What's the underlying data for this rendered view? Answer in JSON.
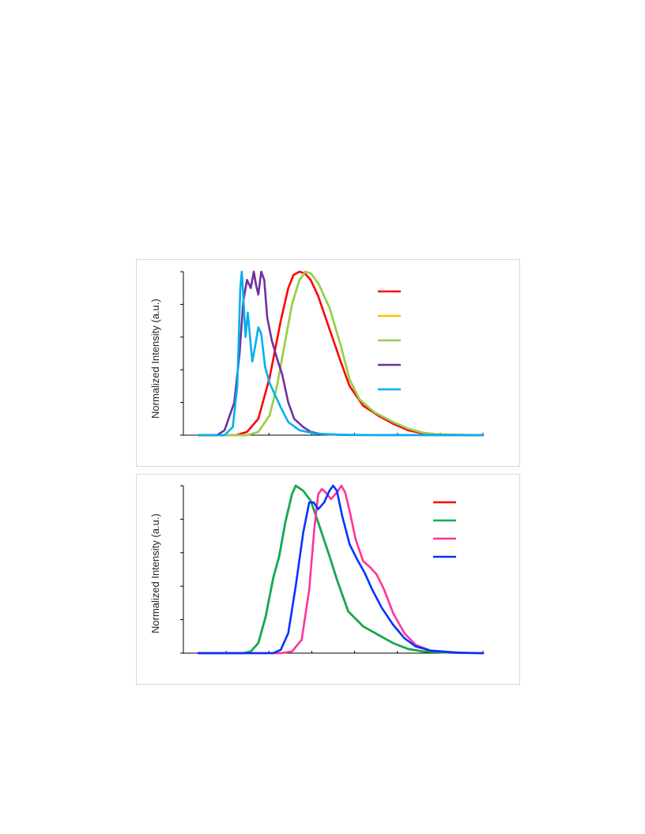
{
  "chart_data": [
    {
      "type": "line",
      "ylabel": "Normalized Intensity (a.u.)",
      "xlabel": "",
      "ylim": [
        0,
        1
      ],
      "yticks": 5,
      "xticks": 7,
      "legend_position": "right",
      "series": [
        {
          "color": "#ff0000",
          "points": [
            [
              20,
              0
            ],
            [
              70,
              0
            ],
            [
              85,
              0.02
            ],
            [
              100,
              0.1
            ],
            [
              115,
              0.35
            ],
            [
              130,
              0.7
            ],
            [
              140,
              0.9
            ],
            [
              147,
              0.98
            ],
            [
              155,
              1.0
            ],
            [
              162,
              0.99
            ],
            [
              170,
              0.95
            ],
            [
              180,
              0.85
            ],
            [
              195,
              0.65
            ],
            [
              210,
              0.45
            ],
            [
              222,
              0.3
            ],
            [
              240,
              0.18
            ],
            [
              260,
              0.12
            ],
            [
              280,
              0.07
            ],
            [
              300,
              0.03
            ],
            [
              320,
              0.01
            ],
            [
              340,
              0.003
            ],
            [
              380,
              0.001
            ],
            [
              400,
              0
            ]
          ]
        },
        {
          "color": "#ffc000",
          "points": [
            [
              20,
              0
            ],
            [
              85,
              0
            ],
            [
              100,
              0.02
            ],
            [
              115,
              0.12
            ],
            [
              125,
              0.3
            ],
            [
              135,
              0.55
            ],
            [
              145,
              0.8
            ],
            [
              155,
              0.95
            ],
            [
              163,
              1.0
            ],
            [
              170,
              0.99
            ],
            [
              180,
              0.93
            ],
            [
              195,
              0.78
            ],
            [
              210,
              0.55
            ],
            [
              222,
              0.34
            ],
            [
              235,
              0.22
            ],
            [
              255,
              0.14
            ],
            [
              280,
              0.08
            ],
            [
              300,
              0.04
            ],
            [
              320,
              0.015
            ],
            [
              340,
              0.005
            ],
            [
              380,
              0.001
            ],
            [
              400,
              0
            ]
          ]
        },
        {
          "color": "#92d050",
          "points": [
            [
              20,
              0
            ],
            [
              85,
              0
            ],
            [
              100,
              0.02
            ],
            [
              115,
              0.12
            ],
            [
              125,
              0.3
            ],
            [
              135,
              0.55
            ],
            [
              145,
              0.8
            ],
            [
              155,
              0.95
            ],
            [
              163,
              1.0
            ],
            [
              170,
              0.99
            ],
            [
              180,
              0.93
            ],
            [
              195,
              0.78
            ],
            [
              210,
              0.55
            ],
            [
              222,
              0.34
            ],
            [
              235,
              0.22
            ],
            [
              255,
              0.14
            ],
            [
              280,
              0.08
            ],
            [
              300,
              0.04
            ],
            [
              320,
              0.015
            ],
            [
              340,
              0.005
            ],
            [
              380,
              0.001
            ],
            [
              400,
              0
            ]
          ]
        },
        {
          "color": "#7030a0",
          "points": [
            [
              20,
              0
            ],
            [
              45,
              0
            ],
            [
              55,
              0.03
            ],
            [
              68,
              0.2
            ],
            [
              75,
              0.5
            ],
            [
              80,
              0.82
            ],
            [
              85,
              0.95
            ],
            [
              90,
              0.9
            ],
            [
              94,
              1.0
            ],
            [
              97,
              0.92
            ],
            [
              100,
              0.86
            ],
            [
              104,
              1.0
            ],
            [
              108,
              0.95
            ],
            [
              112,
              0.72
            ],
            [
              118,
              0.58
            ],
            [
              125,
              0.47
            ],
            [
              132,
              0.37
            ],
            [
              140,
              0.2
            ],
            [
              148,
              0.1
            ],
            [
              160,
              0.05
            ],
            [
              170,
              0.02
            ],
            [
              185,
              0.006
            ],
            [
              220,
              0.001
            ],
            [
              400,
              0
            ]
          ]
        },
        {
          "color": "#00b0f0",
          "points": [
            [
              20,
              0
            ],
            [
              55,
              0
            ],
            [
              66,
              0.05
            ],
            [
              72,
              0.3
            ],
            [
              76,
              0.9
            ],
            [
              78,
              1.0
            ],
            [
              80,
              0.85
            ],
            [
              83,
              0.6
            ],
            [
              86,
              0.75
            ],
            [
              89,
              0.6
            ],
            [
              92,
              0.45
            ],
            [
              96,
              0.55
            ],
            [
              100,
              0.66
            ],
            [
              104,
              0.62
            ],
            [
              109,
              0.42
            ],
            [
              115,
              0.32
            ],
            [
              122,
              0.25
            ],
            [
              130,
              0.17
            ],
            [
              140,
              0.08
            ],
            [
              155,
              0.03
            ],
            [
              175,
              0.01
            ],
            [
              210,
              0.003
            ],
            [
              260,
              0
            ],
            [
              400,
              0
            ]
          ]
        }
      ]
    },
    {
      "type": "line",
      "ylabel": "Normalized Intensity (a.u.)",
      "xlabel": "",
      "ylim": [
        0,
        1
      ],
      "yticks": 5,
      "xticks": 7,
      "legend_position": "right",
      "series": [
        {
          "color": "#ff0000",
          "points": [
            [
              20,
              0
            ],
            [
              80,
              0
            ],
            [
              90,
              0.01
            ],
            [
              100,
              0.06
            ],
            [
              110,
              0.22
            ],
            [
              120,
              0.45
            ],
            [
              128,
              0.58
            ],
            [
              136,
              0.78
            ],
            [
              145,
              0.95
            ],
            [
              150,
              1.0
            ],
            [
              160,
              0.97
            ],
            [
              170,
              0.91
            ],
            [
              180,
              0.78
            ],
            [
              195,
              0.58
            ],
            [
              205,
              0.44
            ],
            [
              220,
              0.25
            ],
            [
              240,
              0.16
            ],
            [
              260,
              0.11
            ],
            [
              280,
              0.06
            ],
            [
              300,
              0.025
            ],
            [
              320,
              0.01
            ],
            [
              360,
              0.002
            ],
            [
              400,
              0
            ]
          ]
        },
        {
          "color": "#00b050",
          "points": [
            [
              20,
              0
            ],
            [
              80,
              0
            ],
            [
              90,
              0.01
            ],
            [
              100,
              0.06
            ],
            [
              110,
              0.22
            ],
            [
              120,
              0.45
            ],
            [
              128,
              0.58
            ],
            [
              136,
              0.78
            ],
            [
              145,
              0.95
            ],
            [
              150,
              1.0
            ],
            [
              160,
              0.97
            ],
            [
              170,
              0.91
            ],
            [
              180,
              0.78
            ],
            [
              195,
              0.58
            ],
            [
              205,
              0.44
            ],
            [
              220,
              0.25
            ],
            [
              240,
              0.16
            ],
            [
              260,
              0.11
            ],
            [
              280,
              0.06
            ],
            [
              300,
              0.025
            ],
            [
              320,
              0.01
            ],
            [
              360,
              0.002
            ],
            [
              400,
              0
            ]
          ]
        },
        {
          "color": "#ff3399",
          "points": [
            [
              20,
              0
            ],
            [
              130,
              0
            ],
            [
              145,
              0.01
            ],
            [
              158,
              0.08
            ],
            [
              168,
              0.38
            ],
            [
              175,
              0.75
            ],
            [
              180,
              0.95
            ],
            [
              185,
              0.98
            ],
            [
              190,
              0.96
            ],
            [
              197,
              0.92
            ],
            [
              205,
              0.96
            ],
            [
              211,
              1.0
            ],
            [
              216,
              0.96
            ],
            [
              222,
              0.85
            ],
            [
              230,
              0.68
            ],
            [
              240,
              0.55
            ],
            [
              250,
              0.51
            ],
            [
              258,
              0.47
            ],
            [
              268,
              0.38
            ],
            [
              280,
              0.24
            ],
            [
              295,
              0.12
            ],
            [
              310,
              0.05
            ],
            [
              330,
              0.015
            ],
            [
              360,
              0.004
            ],
            [
              400,
              0
            ]
          ]
        },
        {
          "color": "#0033ff",
          "points": [
            [
              20,
              0
            ],
            [
              120,
              0
            ],
            [
              130,
              0.02
            ],
            [
              140,
              0.12
            ],
            [
              150,
              0.4
            ],
            [
              160,
              0.72
            ],
            [
              168,
              0.9
            ],
            [
              174,
              0.9
            ],
            [
              180,
              0.86
            ],
            [
              188,
              0.9
            ],
            [
              195,
              0.97
            ],
            [
              200,
              1.0
            ],
            [
              205,
              0.97
            ],
            [
              212,
              0.82
            ],
            [
              222,
              0.65
            ],
            [
              232,
              0.56
            ],
            [
              242,
              0.48
            ],
            [
              252,
              0.38
            ],
            [
              265,
              0.27
            ],
            [
              280,
              0.17
            ],
            [
              295,
              0.09
            ],
            [
              310,
              0.04
            ],
            [
              330,
              0.015
            ],
            [
              370,
              0.002
            ],
            [
              400,
              0
            ]
          ]
        }
      ]
    }
  ]
}
